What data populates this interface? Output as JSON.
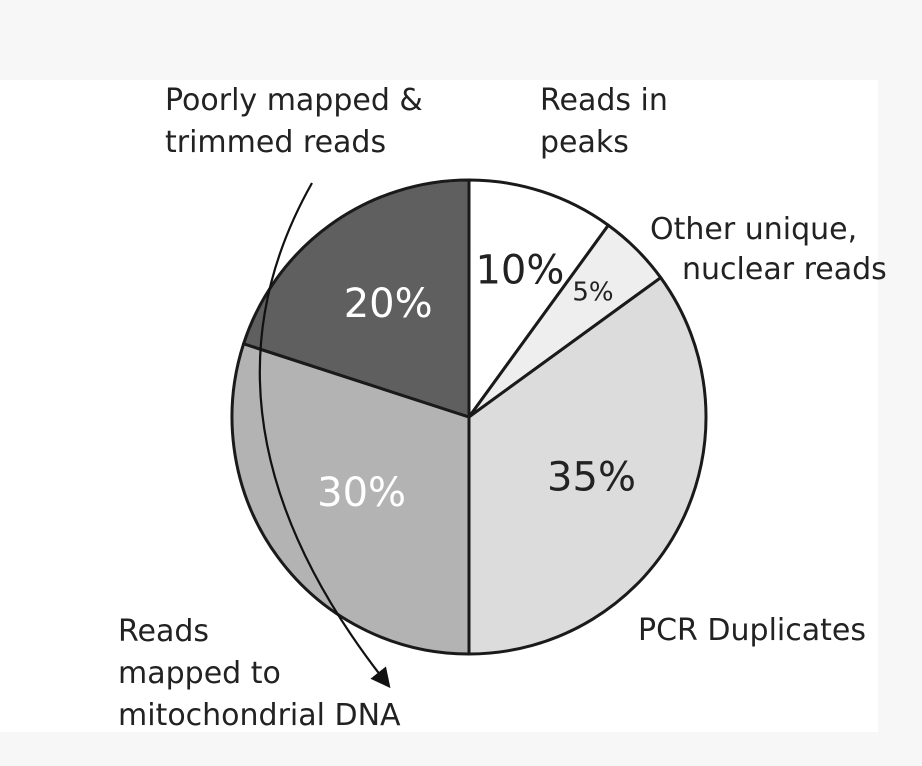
{
  "chart_data": {
    "type": "pie",
    "slices": [
      {
        "label": "Reads in peaks",
        "value": 10,
        "value_label": "10%",
        "color": "#ffffff",
        "text_color": "#222222"
      },
      {
        "label": "Other unique, nuclear reads",
        "value": 5,
        "value_label": "5%",
        "color": "#eeeeee",
        "text_color": "#222222"
      },
      {
        "label": "PCR Duplicates",
        "value": 35,
        "value_label": "35%",
        "color": "#dcdcdc",
        "text_color": "#222222"
      },
      {
        "label": "Reads mapped to mitochondrial DNA",
        "value": 30,
        "value_label": "30%",
        "color": "#b3b3b3",
        "text_color": "#ffffff"
      },
      {
        "label": "Poorly mapped & trimmed reads",
        "value": 20,
        "value_label": "20%",
        "color": "#5f5f5f",
        "text_color": "#ffffff"
      }
    ],
    "start_angle_deg": 0,
    "direction": "clockwise",
    "outline_color": "#1a1a1a",
    "background_color": "#ffffff"
  },
  "callouts": [
    {
      "lines": [
        "Poorly mapped &",
        "trimmed reads"
      ]
    },
    {
      "lines": [
        "Reads in",
        "peaks"
      ]
    },
    {
      "lines": [
        "Other unique,",
        "nuclear reads"
      ]
    },
    {
      "lines": [
        "PCR Duplicates"
      ]
    },
    {
      "lines": [
        "Reads",
        "mapped to",
        "mitochondrial DNA"
      ]
    }
  ]
}
